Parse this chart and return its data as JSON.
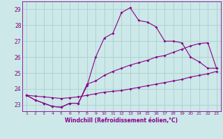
{
  "xlabel": "Windchill (Refroidissement éolien,°C)",
  "bg_color": "#cce8e8",
  "grid_color": "#aad0d0",
  "line_color": "#880088",
  "x_hours": [
    1,
    2,
    3,
    4,
    5,
    6,
    7,
    8,
    9,
    10,
    11,
    12,
    13,
    14,
    15,
    16,
    17,
    18,
    19,
    20,
    21,
    22,
    23
  ],
  "line1": [
    23.6,
    23.3,
    23.1,
    22.9,
    22.85,
    23.1,
    23.1,
    24.2,
    26.0,
    27.2,
    27.5,
    28.8,
    29.1,
    28.3,
    28.2,
    27.9,
    27.0,
    27.0,
    26.9,
    26.0,
    25.7,
    25.3,
    25.3
  ],
  "line2": [
    23.6,
    23.3,
    23.1,
    22.9,
    22.85,
    23.1,
    23.1,
    24.3,
    24.5,
    24.85,
    25.1,
    25.3,
    25.5,
    25.65,
    25.8,
    26.0,
    26.1,
    26.3,
    26.5,
    26.7,
    26.85,
    26.9,
    25.3
  ],
  "line3": [
    23.6,
    23.55,
    23.5,
    23.45,
    23.4,
    23.45,
    23.5,
    23.6,
    23.7,
    23.8,
    23.85,
    23.9,
    24.0,
    24.1,
    24.2,
    24.3,
    24.4,
    24.5,
    24.6,
    24.75,
    24.85,
    24.95,
    25.1
  ],
  "ylim": [
    22.6,
    29.5
  ],
  "yticks": [
    23,
    24,
    25,
    26,
    27,
    28,
    29
  ]
}
